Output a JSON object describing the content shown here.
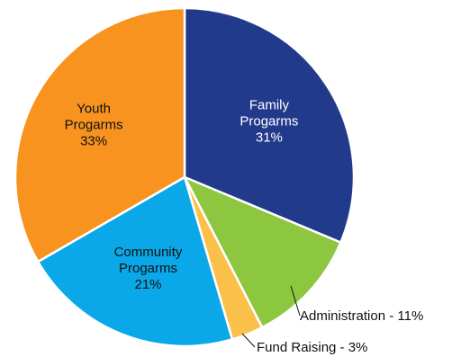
{
  "chart_data": {
    "type": "pie",
    "slices": [
      {
        "label_lines": [
          "Family",
          "Progarms",
          "31%"
        ],
        "value": 31,
        "color": "#223a8c",
        "label_color": "#ffffff",
        "label_position": "inside"
      },
      {
        "label_lines": [
          "Administration - 11%"
        ],
        "value": 11,
        "color": "#8dc63f",
        "label_color": "#111111",
        "label_position": "outside"
      },
      {
        "label_lines": [
          "Fund Raising - 3%"
        ],
        "value": 3,
        "color": "#fbc04a",
        "label_color": "#111111",
        "label_position": "outside"
      },
      {
        "label_lines": [
          "Community",
          "Progarms",
          "21%"
        ],
        "value": 21,
        "color": "#0aa8e8",
        "label_color": "#111111",
        "label_position": "inside"
      },
      {
        "label_lines": [
          "Youth",
          "Progarms",
          "33%"
        ],
        "value": 33,
        "color": "#f7931e",
        "label_color": "#111111",
        "label_position": "inside"
      }
    ],
    "start_angle": "12 o'clock",
    "direction": "clockwise",
    "slice_border_color": "#ffffff"
  }
}
